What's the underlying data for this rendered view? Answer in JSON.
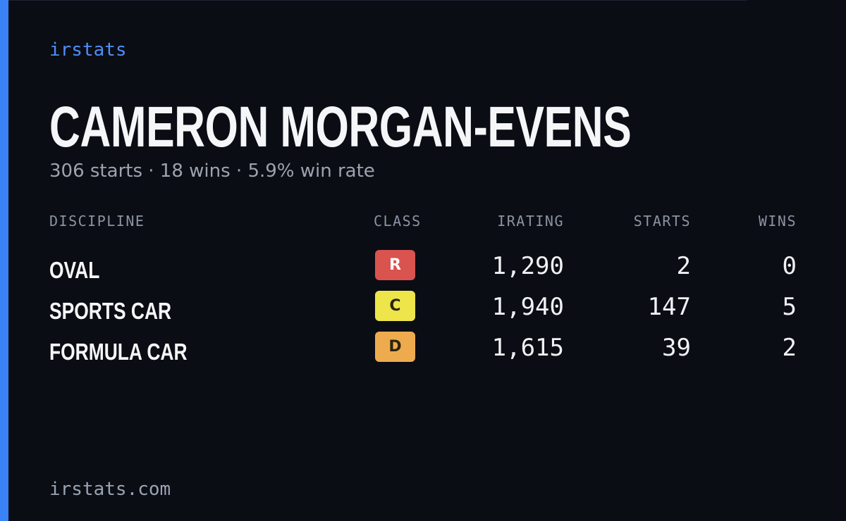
{
  "brand": "irstats",
  "header": {
    "name": "CAMERON MORGAN-EVENS",
    "summary": "306 starts · 18 wins · 5.9% win rate"
  },
  "table": {
    "columns": [
      "DISCIPLINE",
      "CLASS",
      "IRATING",
      "STARTS",
      "WINS"
    ],
    "rows": [
      {
        "discipline": "OVAL",
        "class": "R",
        "class_color": "#d9534f",
        "irating": "1,290",
        "starts": "2",
        "wins": "0"
      },
      {
        "discipline": "SPORTS CAR",
        "class": "C",
        "class_color": "#ede54a",
        "irating": "1,940",
        "starts": "147",
        "wins": "5"
      },
      {
        "discipline": "FORMULA CAR",
        "class": "D",
        "class_color": "#eeab4e",
        "irating": "1,615",
        "starts": "39",
        "wins": "2"
      }
    ]
  },
  "footer": "irstats.com"
}
